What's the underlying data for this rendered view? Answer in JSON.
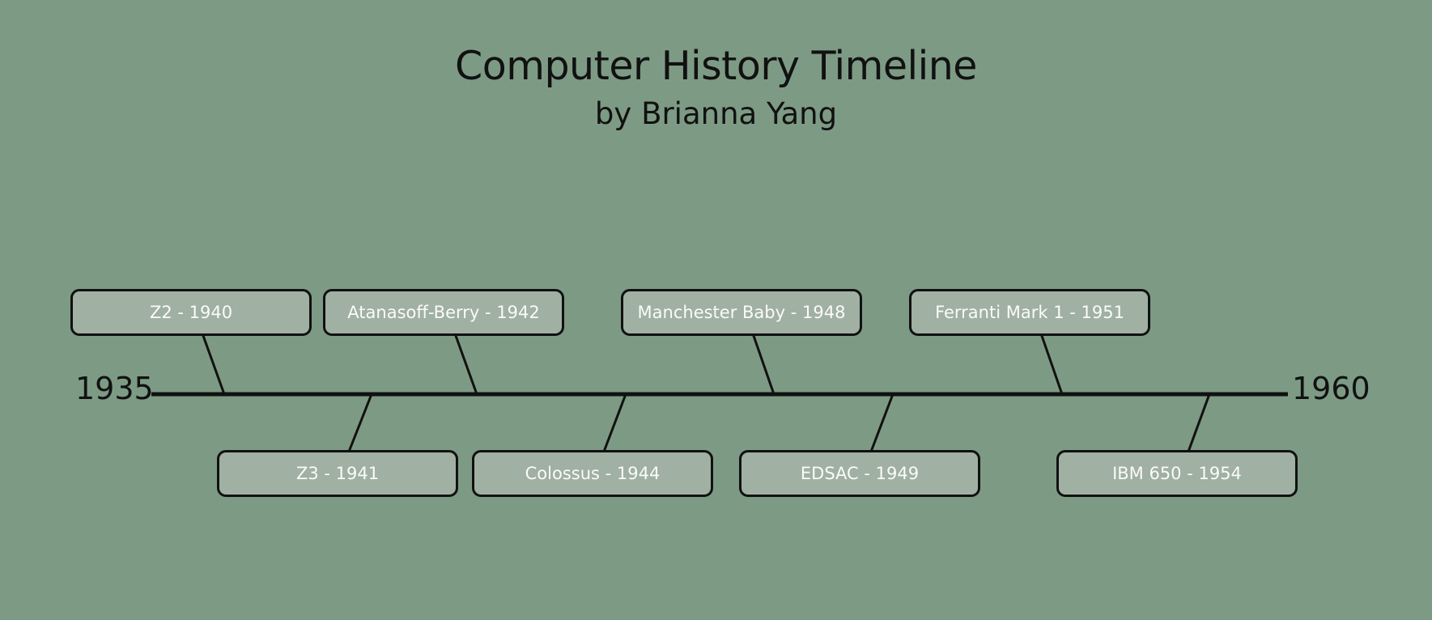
{
  "header": {
    "title": "Computer History Timeline",
    "subtitle": "by Brianna Yang"
  },
  "timeline": {
    "start_year": "1935",
    "end_year": "1960",
    "events": [
      {
        "label": "Z2 - 1940",
        "year": 1940,
        "side": "above"
      },
      {
        "label": "Z3 - 1941",
        "year": 1941,
        "side": "below"
      },
      {
        "label": "Atanasoff-Berry - 1942",
        "year": 1942,
        "side": "above"
      },
      {
        "label": "Colossus - 1944",
        "year": 1944,
        "side": "below"
      },
      {
        "label": "Manchester Baby - 1948",
        "year": 1948,
        "side": "above"
      },
      {
        "label": "EDSAC - 1949",
        "year": 1949,
        "side": "below"
      },
      {
        "label": "Ferranti Mark 1 - 1951",
        "year": 1951,
        "side": "above"
      },
      {
        "label": "IBM 650 - 1954",
        "year": 1954,
        "side": "below"
      }
    ]
  },
  "colors": {
    "background": "#7d9a85",
    "box_fill": "#a0b0a3",
    "box_text": "#fbfbf5",
    "line": "#111111"
  }
}
